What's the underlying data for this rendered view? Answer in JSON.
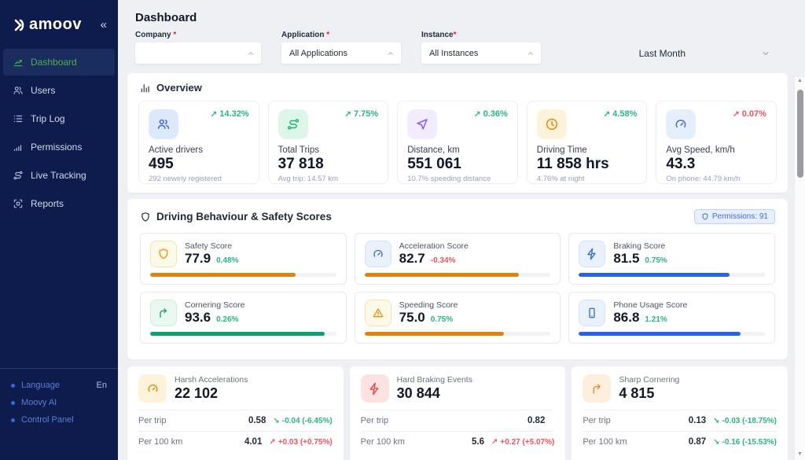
{
  "brand": {
    "name": "Damoov",
    "wordmark_suffix": "amoov",
    "collapse_icon": "«"
  },
  "colors": {
    "green": "#2ab57d",
    "red": "#f0525f",
    "accent_blue": "#3f6ad8",
    "sidebar_bg": "#0d1c4d",
    "active_nav_green": "#4caf50"
  },
  "sidebar": {
    "items": [
      {
        "label": "Dashboard",
        "icon": "dashboard-chart-icon",
        "active": true
      },
      {
        "label": "Users",
        "icon": "users-icon",
        "active": false
      },
      {
        "label": "Trip Log",
        "icon": "trip-log-list-icon",
        "active": false
      },
      {
        "label": "Permissions",
        "icon": "signal-bars-icon",
        "active": false
      },
      {
        "label": "Live Tracking",
        "icon": "route-icon",
        "active": false
      },
      {
        "label": "Reports",
        "icon": "reports-frame-icon",
        "active": false
      }
    ],
    "footer": [
      {
        "label": "Language",
        "value": "En"
      },
      {
        "label": "Moovy AI",
        "value": ""
      },
      {
        "label": "Control Panel",
        "value": ""
      }
    ]
  },
  "header": {
    "title": "Dashboard"
  },
  "filters": {
    "company": {
      "label": "Company",
      "required": "*",
      "value": ""
    },
    "application": {
      "label": "Application",
      "required": "*",
      "value": "All Applications"
    },
    "instance": {
      "label": "Instance",
      "required": "*",
      "value": "All Instances"
    },
    "period": {
      "value": "Last Month"
    }
  },
  "overview": {
    "title": "Overview",
    "cards": [
      {
        "icon": "drivers-icon",
        "icon_color": "#3f6ad8",
        "icon_bg": "#dce8fb",
        "arrow": "↗",
        "delta": "14.32%",
        "delta_color": "#2ab57d",
        "label": "Active drivers",
        "value": "495",
        "sub": "292 newely registered"
      },
      {
        "icon": "trips-route-icon",
        "icon_color": "#21b573",
        "icon_bg": "#def5ea",
        "arrow": "↗",
        "delta": "7.75%",
        "delta_color": "#2ab57d",
        "label": "Total Trips",
        "value": "37 818",
        "sub": "Avg trip: 14.57 km"
      },
      {
        "icon": "distance-navigation-icon",
        "icon_color": "#8b5cf6",
        "icon_bg": "#f2ecfe",
        "arrow": "↗",
        "delta": "0.36%",
        "delta_color": "#2ab57d",
        "label": "Distance, km",
        "value": "551 061",
        "sub": "10.7% speeding distance"
      },
      {
        "icon": "driving-time-clock-icon",
        "icon_color": "#e8870c",
        "icon_bg": "#fdf3da",
        "arrow": "↗",
        "delta": "4.58%",
        "delta_color": "#2ab57d",
        "label": "Driving Time",
        "value": "11 858 hrs",
        "sub": "4.76% at night"
      },
      {
        "icon": "avg-speed-gauge-icon",
        "icon_color": "#3f6ad8",
        "icon_bg": "#e5eefb",
        "arrow": "↗",
        "delta": "0.07%",
        "delta_color": "#f0525f",
        "label": "Avg Speed, km/h",
        "value": "43.3",
        "sub": "On phone: 44.79 km/h"
      }
    ]
  },
  "scores": {
    "title": "Driving Behaviour & Safety Scores",
    "badge": {
      "icon": "permissions-shield-icon",
      "label": "Permissions: 91"
    },
    "cards": [
      {
        "icon": "safety-shield-icon",
        "icon_color": "#e8930c",
        "icon_bg": "#fdf9e9",
        "icon_border": "#f3e3b3",
        "label": "Safety Score",
        "value": "77.9",
        "delta": "0.48%",
        "delta_color": "#2ab57d",
        "bar": {
          "pct": 78,
          "color": "#e2820d"
        }
      },
      {
        "icon": "acceleration-gauge-icon",
        "icon_color": "#3f6ad8",
        "icon_bg": "#e9f1fd",
        "icon_border": "#d4e2f9",
        "label": "Acceleration Score",
        "value": "82.7",
        "delta": "-0.34%",
        "delta_color": "#f0525f",
        "bar": {
          "pct": 83,
          "color": "#e2820d"
        }
      },
      {
        "icon": "braking-bolt-icon",
        "icon_color": "#2f6bdd",
        "icon_bg": "#e9f1fd",
        "icon_border": "#d4e2f9",
        "label": "Braking Score",
        "value": "81.5",
        "delta": "0.75%",
        "delta_color": "#2ab57d",
        "bar": {
          "pct": 81,
          "color": "#2563eb"
        }
      },
      {
        "icon": "cornering-arrow-icon",
        "icon_color": "#16a06b",
        "icon_bg": "#e9f8f0",
        "icon_border": "#cdeedd",
        "label": "Cornering Score",
        "value": "93.6",
        "delta": "0.26%",
        "delta_color": "#2ab57d",
        "bar": {
          "pct": 94,
          "color": "#0e9f6e"
        }
      },
      {
        "icon": "speeding-warning-icon",
        "icon_color": "#e8930c",
        "icon_bg": "#fdf9e9",
        "icon_border": "#f3e3b3",
        "label": "Speeding Score",
        "value": "75.0",
        "delta": "0.75%",
        "delta_color": "#2ab57d",
        "bar": {
          "pct": 75,
          "color": "#e2820d"
        }
      },
      {
        "icon": "phone-usage-icon",
        "icon_color": "#2f6bdd",
        "icon_bg": "#e9f1fd",
        "icon_border": "#d4e2f9",
        "label": "Phone Usage Score",
        "value": "86.8",
        "delta": "1.21%",
        "delta_color": "#2ab57d",
        "bar": {
          "pct": 87,
          "color": "#2563eb"
        }
      }
    ]
  },
  "events": {
    "cards": [
      {
        "icon": "harsh-acceleration-gauge-icon",
        "icon_color": "#e8870c",
        "icon_bg": "#fdf3da",
        "title": "Harsh Accelerations",
        "value": "22 102",
        "rows": [
          {
            "label": "Per trip",
            "value": "0.58",
            "arrow": "↘",
            "delta": "-0.04 (-6.45%)",
            "delta_color": "#2ab57d"
          },
          {
            "label": "Per 100 km",
            "value": "4.01",
            "arrow": "↗",
            "delta": "+0.03 (+0.75%)",
            "delta_color": "#f0525f"
          }
        ]
      },
      {
        "icon": "hard-braking-bolt-icon",
        "icon_color": "#ef4444",
        "icon_bg": "#fde2e2",
        "title": "Hard Braking Events",
        "value": "30 844",
        "rows": [
          {
            "label": "Per trip",
            "value": "0.82",
            "arrow": "",
            "delta": "",
            "delta_color": ""
          },
          {
            "label": "Per 100 km",
            "value": "5.6",
            "arrow": "↗",
            "delta": "+0.27 (+5.07%)",
            "delta_color": "#f0525f"
          }
        ]
      },
      {
        "icon": "sharp-cornering-arrow-icon",
        "icon_color": "#ed8936",
        "icon_bg": "#fdeede",
        "title": "Sharp Cornering",
        "value": "4 815",
        "rows": [
          {
            "label": "Per trip",
            "value": "0.13",
            "arrow": "↘",
            "delta": "-0.03 (-18.75%)",
            "delta_color": "#2ab57d"
          },
          {
            "label": "Per 100 km",
            "value": "0.87",
            "arrow": "↘",
            "delta": "-0.16 (-15.53%)",
            "delta_color": "#2ab57d"
          }
        ]
      }
    ]
  }
}
